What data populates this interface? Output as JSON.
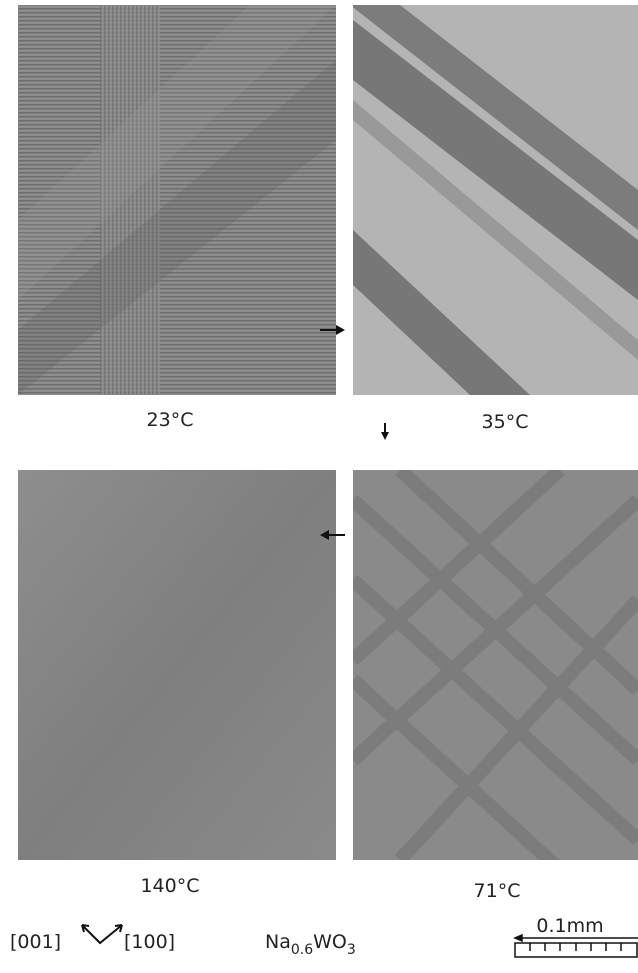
{
  "panels": [
    {
      "label": "23°C"
    },
    {
      "label": "35°C"
    },
    {
      "label": "140°C"
    },
    {
      "label": "71°C"
    }
  ],
  "axes": {
    "left": "[001]",
    "right": "[100]"
  },
  "formula": {
    "parts": [
      "Na",
      "0.6",
      "WO",
      "3"
    ]
  },
  "scale_bar": {
    "label": "0.1mm"
  }
}
